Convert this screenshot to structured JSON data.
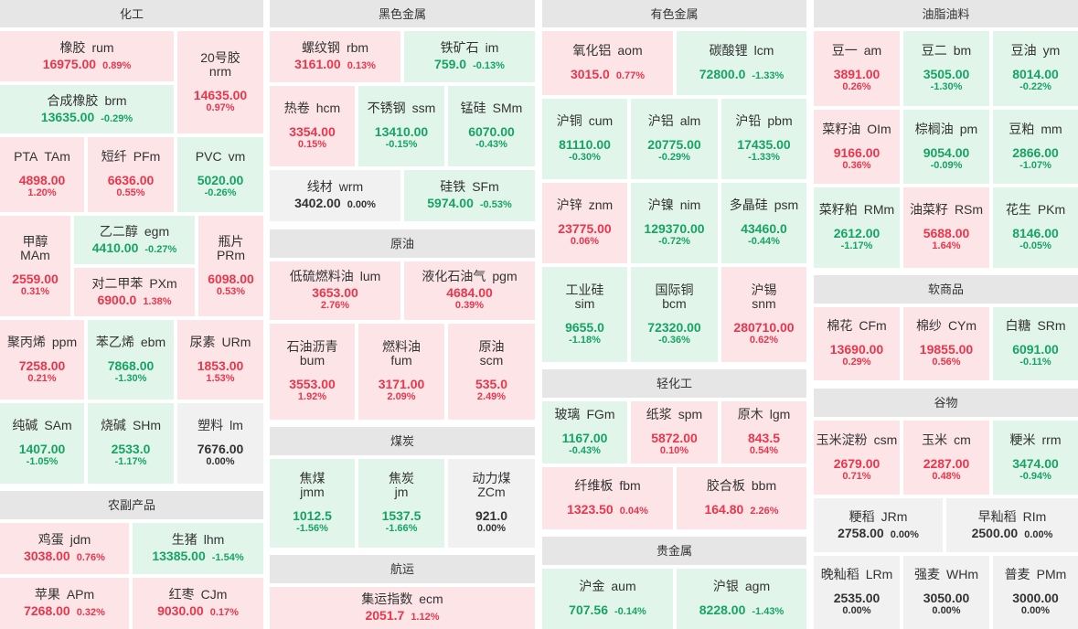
{
  "colors": {
    "up_background": "#fde4e7",
    "up_text": "#e8374d",
    "down_background": "#e1f5eb",
    "down_text": "#17a463",
    "flat_background": "#f1f1f1",
    "flat_text": "#333333",
    "header_background": "#e6e6e6"
  },
  "sections": [
    {
      "title": "化工",
      "items": [
        {
          "name": "橡胶",
          "code": "rum",
          "price": "16975.00",
          "change": "0.89%"
        },
        {
          "name": "20号胶",
          "code": "nrm",
          "price": "14635.00",
          "change": "0.97%"
        },
        {
          "name": "合成橡胶",
          "code": "brm",
          "price": "13635.00",
          "change": "-0.29%"
        },
        {
          "name": "PTA",
          "code": "TAm",
          "price": "4898.00",
          "change": "1.20%"
        },
        {
          "name": "短纤",
          "code": "PFm",
          "price": "6636.00",
          "change": "0.55%"
        },
        {
          "name": "PVC",
          "code": "vm",
          "price": "5020.00",
          "change": "-0.26%"
        },
        {
          "name": "甲醇",
          "code": "MAm",
          "price": "2559.00",
          "change": "0.31%"
        },
        {
          "name": "乙二醇",
          "code": "egm",
          "price": "4410.00",
          "change": "-0.27%"
        },
        {
          "name": "对二甲苯",
          "code": "PXm",
          "price": "6900.0",
          "change": "1.38%"
        },
        {
          "name": "瓶片",
          "code": "PRm",
          "price": "6098.00",
          "change": "0.53%"
        },
        {
          "name": "聚丙烯",
          "code": "ppm",
          "price": "7258.00",
          "change": "0.21%"
        },
        {
          "name": "苯乙烯",
          "code": "ebm",
          "price": "7868.00",
          "change": "-1.30%"
        },
        {
          "name": "尿素",
          "code": "URm",
          "price": "1853.00",
          "change": "1.53%"
        },
        {
          "name": "纯碱",
          "code": "SAm",
          "price": "1407.00",
          "change": "-1.05%"
        },
        {
          "name": "烧碱",
          "code": "SHm",
          "price": "2533.0",
          "change": "-1.17%"
        },
        {
          "name": "塑料",
          "code": "lm",
          "price": "7676.00",
          "change": "0.00%"
        }
      ]
    },
    {
      "title": "农副产品",
      "items": [
        {
          "name": "鸡蛋",
          "code": "jdm",
          "price": "3038.00",
          "change": "0.76%"
        },
        {
          "name": "生猪",
          "code": "lhm",
          "price": "13385.00",
          "change": "-1.54%"
        },
        {
          "name": "苹果",
          "code": "APm",
          "price": "7268.00",
          "change": "0.32%"
        },
        {
          "name": "红枣",
          "code": "CJm",
          "price": "9030.00",
          "change": "0.17%"
        }
      ]
    },
    {
      "title": "黑色金属",
      "items": [
        {
          "name": "螺纹钢",
          "code": "rbm",
          "price": "3161.00",
          "change": "0.13%"
        },
        {
          "name": "铁矿石",
          "code": "im",
          "price": "759.0",
          "change": "-0.13%"
        },
        {
          "name": "热卷",
          "code": "hcm",
          "price": "3354.00",
          "change": "0.15%"
        },
        {
          "name": "不锈钢",
          "code": "ssm",
          "price": "13410.00",
          "change": "-0.15%"
        },
        {
          "name": "锰硅",
          "code": "SMm",
          "price": "6070.00",
          "change": "-0.43%"
        },
        {
          "name": "线材",
          "code": "wrm",
          "price": "3402.00",
          "change": "0.00%"
        },
        {
          "name": "硅铁",
          "code": "SFm",
          "price": "5974.00",
          "change": "-0.53%"
        }
      ]
    },
    {
      "title": "原油",
      "items": [
        {
          "name": "低硫燃料油",
          "code": "lum",
          "price": "3653.00",
          "change": "2.76%"
        },
        {
          "name": "液化石油气",
          "code": "pgm",
          "price": "4684.00",
          "change": "0.39%"
        },
        {
          "name": "石油沥青",
          "code": "bum",
          "price": "3553.00",
          "change": "1.92%"
        },
        {
          "name": "燃料油",
          "code": "fum",
          "price": "3171.00",
          "change": "2.09%"
        },
        {
          "name": "原油",
          "code": "scm",
          "price": "535.0",
          "change": "2.49%"
        }
      ]
    },
    {
      "title": "煤炭",
      "items": [
        {
          "name": "焦煤",
          "code": "jmm",
          "price": "1012.5",
          "change": "-1.56%"
        },
        {
          "name": "焦炭",
          "code": "jm",
          "price": "1537.5",
          "change": "-1.66%"
        },
        {
          "name": "动力煤",
          "code": "ZCm",
          "price": "921.0",
          "change": "0.00%"
        }
      ]
    },
    {
      "title": "航运",
      "items": [
        {
          "name": "集运指数",
          "code": "ecm",
          "price": "2051.7",
          "change": "1.12%"
        }
      ]
    },
    {
      "title": "有色金属",
      "items": [
        {
          "name": "氧化铝",
          "code": "aom",
          "price": "3015.0",
          "change": "0.77%"
        },
        {
          "name": "碳酸锂",
          "code": "lcm",
          "price": "72800.0",
          "change": "-1.33%"
        },
        {
          "name": "沪铜",
          "code": "cum",
          "price": "81110.00",
          "change": "-0.30%"
        },
        {
          "name": "沪铝",
          "code": "alm",
          "price": "20775.00",
          "change": "-0.29%"
        },
        {
          "name": "沪铅",
          "code": "pbm",
          "price": "17435.00",
          "change": "-1.33%"
        },
        {
          "name": "沪锌",
          "code": "znm",
          "price": "23775.00",
          "change": "0.06%"
        },
        {
          "name": "沪镍",
          "code": "nim",
          "price": "129370.00",
          "change": "-0.72%"
        },
        {
          "name": "多晶硅",
          "code": "psm",
          "price": "43460.0",
          "change": "-0.44%"
        },
        {
          "name": "工业硅",
          "code": "sim",
          "price": "9655.0",
          "change": "-1.18%"
        },
        {
          "name": "国际铜",
          "code": "bcm",
          "price": "72320.00",
          "change": "-0.36%"
        },
        {
          "name": "沪锡",
          "code": "snm",
          "price": "280710.00",
          "change": "0.62%"
        }
      ]
    },
    {
      "title": "轻化工",
      "items": [
        {
          "name": "玻璃",
          "code": "FGm",
          "price": "1167.00",
          "change": "-0.43%"
        },
        {
          "name": "纸浆",
          "code": "spm",
          "price": "5872.00",
          "change": "0.10%"
        },
        {
          "name": "原木",
          "code": "lgm",
          "price": "843.5",
          "change": "0.54%"
        },
        {
          "name": "纤维板",
          "code": "fbm",
          "price": "1323.50",
          "change": "0.04%"
        },
        {
          "name": "胶合板",
          "code": "bbm",
          "price": "164.80",
          "change": "2.26%"
        }
      ]
    },
    {
      "title": "贵金属",
      "items": [
        {
          "name": "沪金",
          "code": "aum",
          "price": "707.56",
          "change": "-0.14%"
        },
        {
          "name": "沪银",
          "code": "agm",
          "price": "8228.00",
          "change": "-1.43%"
        }
      ]
    },
    {
      "title": "油脂油料",
      "items": [
        {
          "name": "豆一",
          "code": "am",
          "price": "3891.00",
          "change": "0.26%"
        },
        {
          "name": "豆二",
          "code": "bm",
          "price": "3505.00",
          "change": "-1.30%"
        },
        {
          "name": "豆油",
          "code": "ym",
          "price": "8014.00",
          "change": "-0.22%"
        },
        {
          "name": "菜籽油",
          "code": "OIm",
          "price": "9166.00",
          "change": "0.36%"
        },
        {
          "name": "棕榈油",
          "code": "pm",
          "price": "9054.00",
          "change": "-0.09%"
        },
        {
          "name": "豆粕",
          "code": "mm",
          "price": "2866.00",
          "change": "-1.07%"
        },
        {
          "name": "菜籽粕",
          "code": "RMm",
          "price": "2612.00",
          "change": "-1.17%"
        },
        {
          "name": "油菜籽",
          "code": "RSm",
          "price": "5688.00",
          "change": "1.64%"
        },
        {
          "name": "花生",
          "code": "PKm",
          "price": "8146.00",
          "change": "-0.05%"
        }
      ]
    },
    {
      "title": "软商品",
      "items": [
        {
          "name": "棉花",
          "code": "CFm",
          "price": "13690.00",
          "change": "0.29%"
        },
        {
          "name": "棉纱",
          "code": "CYm",
          "price": "19855.00",
          "change": "0.56%"
        },
        {
          "name": "白糖",
          "code": "SRm",
          "price": "6091.00",
          "change": "-0.11%"
        }
      ]
    },
    {
      "title": "谷物",
      "items": [
        {
          "name": "玉米淀粉",
          "code": "csm",
          "price": "2679.00",
          "change": "0.71%"
        },
        {
          "name": "玉米",
          "code": "cm",
          "price": "2287.00",
          "change": "0.48%"
        },
        {
          "name": "粳米",
          "code": "rrm",
          "price": "3474.00",
          "change": "-0.94%"
        },
        {
          "name": "粳稻",
          "code": "JRm",
          "price": "2758.00",
          "change": "0.00%"
        },
        {
          "name": "早籼稻",
          "code": "RIm",
          "price": "2500.00",
          "change": "0.00%"
        },
        {
          "name": "晚籼稻",
          "code": "LRm",
          "price": "2535.00",
          "change": "0.00%"
        },
        {
          "name": "强麦",
          "code": "WHm",
          "price": "3050.00",
          "change": "0.00%"
        },
        {
          "name": "普麦",
          "code": "PMm",
          "price": "3000.00",
          "change": "0.00%"
        }
      ]
    }
  ]
}
